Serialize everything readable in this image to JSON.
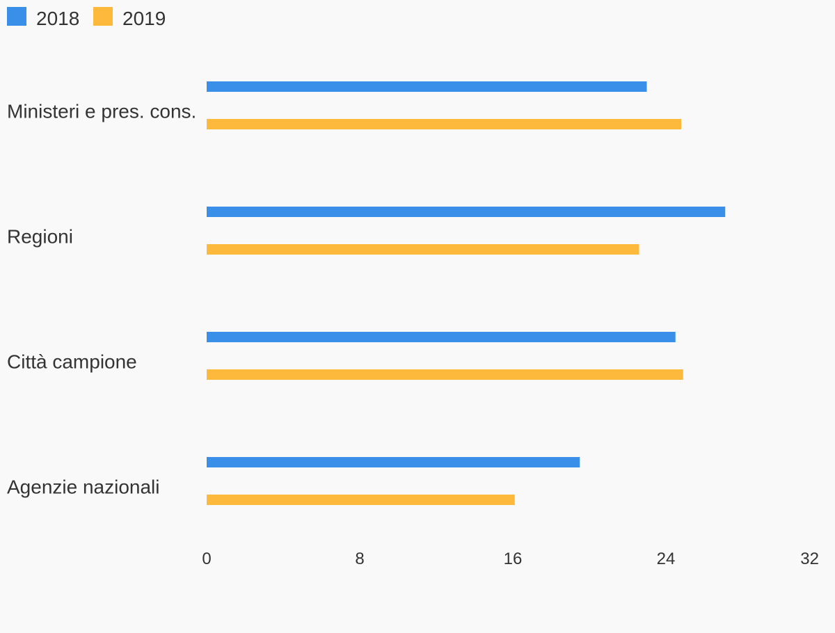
{
  "chart_data": {
    "type": "bar",
    "orientation": "horizontal",
    "categories": [
      "Ministeri e pres. cons.",
      "Regioni",
      "Città campione",
      "Agenzie nazionali"
    ],
    "series": [
      {
        "name": "2018",
        "color": "#3a8fe8",
        "values": [
          23.0,
          27.1,
          24.5,
          19.5
        ]
      },
      {
        "name": "2019",
        "color": "#fdb93b",
        "values": [
          24.8,
          22.6,
          24.9,
          16.1
        ]
      }
    ],
    "xlim": [
      0,
      32
    ],
    "xticks": [
      "0",
      "8",
      "16",
      "24",
      "32"
    ],
    "legend": "top-left",
    "grid": false
  }
}
